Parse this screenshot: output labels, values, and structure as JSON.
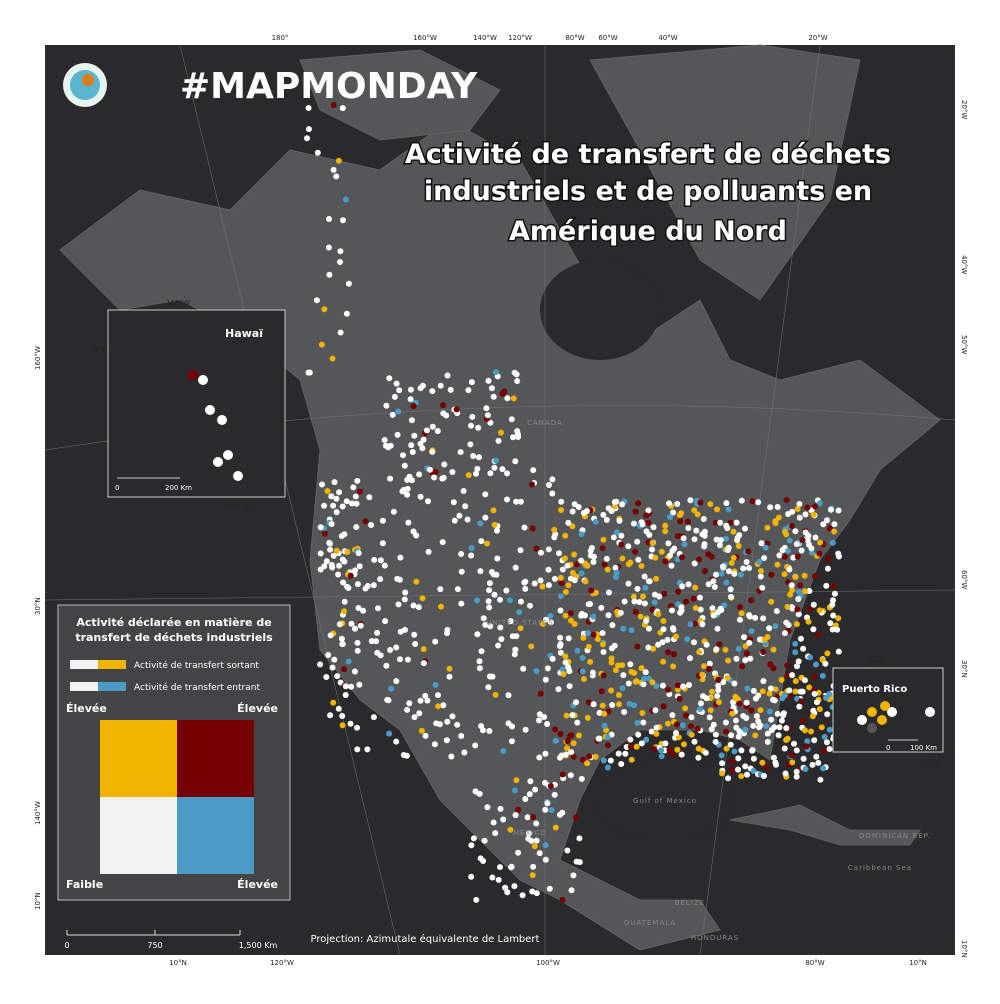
{
  "header": {
    "tag": "#MAPMONDAY",
    "title_lines": [
      "Activité de transfert de déchets",
      "industriels et de polluants en",
      "Amérique du Nord"
    ]
  },
  "graticule": {
    "top": [
      "180°",
      "160°W",
      "140°W",
      "120°W",
      "80°W",
      "60°W",
      "40°W",
      "20°W"
    ],
    "right": [
      "20°W",
      "40°W",
      "50°W",
      "60°W",
      "30°N",
      "10°N"
    ],
    "left": [
      "160°W",
      "30°N",
      "140°W",
      "10°N"
    ],
    "bottom": [
      "10°N",
      "120°W",
      "100°W",
      "80°W",
      "10°N"
    ]
  },
  "places": {
    "canada": "CANADA",
    "mexico": "MÉXICO",
    "usa": "UNITED STATES",
    "gulf": "Gulf of Mexico",
    "caribbean": "Caribbean Sea",
    "dominican": "DOMINICAN REP.",
    "guatemala": "GUATEMALA",
    "honduras": "HONDURAS",
    "belize": "BELIZE"
  },
  "insets": {
    "hawaii": {
      "title": "Hawaï",
      "lon1": "160°W",
      "lat": "20°N",
      "lon2": "155°W",
      "scale": [
        "0",
        "200 Km"
      ]
    },
    "puerto_rico": {
      "title": "Puerto Rico",
      "lat": "20°N",
      "lon": "65°W",
      "scale": [
        "0",
        "100 Km"
      ]
    }
  },
  "legend": {
    "title_lines": [
      "Activité déclarée en matière de",
      "transfert de déchets industriels"
    ],
    "items": [
      "Activité de transfert sortant",
      "Activité de transfert entrant"
    ],
    "high_left": "Élevée",
    "high_right": "Élevée",
    "low": "Faible",
    "high_bottom": "Élevée"
  },
  "scale_bar": [
    "0",
    "750",
    "1,500 Km"
  ],
  "projection": "Projection: Azimutale équivalente de Lambert"
}
